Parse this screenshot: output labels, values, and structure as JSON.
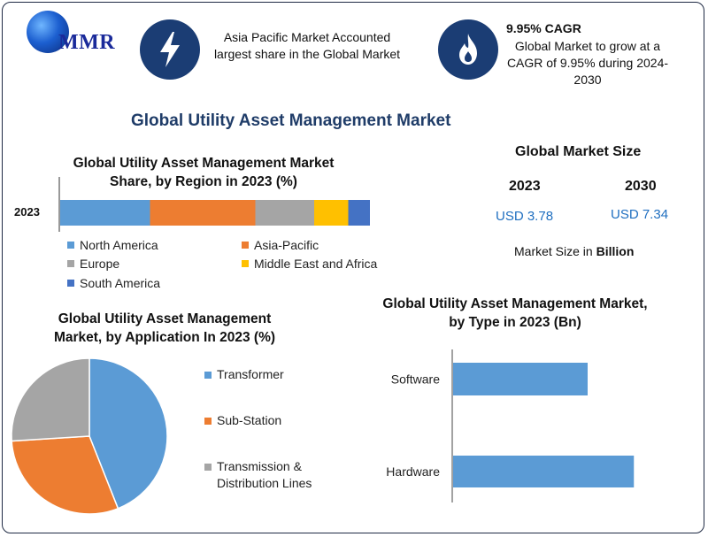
{
  "logo": {
    "text": "MMR"
  },
  "headline": {
    "region": "Asia Pacific Market Accounted largest share in the Global Market",
    "cagr_title": "9.95% CAGR",
    "cagr_body": "Global Market to grow at a CAGR of 9.95% during 2024-2030"
  },
  "main_title": "Global Utility Asset Management Market",
  "market_size": {
    "title": "Global Market Size",
    "year_1": "2023",
    "year_2": "2030",
    "value_1": "USD 3.78",
    "value_2": "USD 7.34",
    "unit_prefix": "Market Size in",
    "unit_bold": "Billion"
  },
  "colors": {
    "north_america": "#5b9bd5",
    "asia_pacific": "#ed7d31",
    "europe": "#a5a5a5",
    "mea": "#ffc000",
    "south_america": "#4472c4",
    "frame": "#1f2a44",
    "icon_bg": "#1b3d74"
  },
  "icons": [
    "globe-logo-icon",
    "lightning-icon",
    "flame-icon"
  ],
  "chart_data": [
    {
      "type": "bar",
      "orientation": "horizontal-stacked",
      "title": "Global Utility Asset Management Market Share, by Region in 2023 (%)",
      "categories": [
        "2023"
      ],
      "series": [
        {
          "name": "North America",
          "values": [
            29
          ]
        },
        {
          "name": "Asia-Pacific",
          "values": [
            34
          ]
        },
        {
          "name": "Europe",
          "values": [
            19
          ]
        },
        {
          "name": "Middle East and Africa",
          "values": [
            11
          ]
        },
        {
          "name": "South America",
          "values": [
            7
          ]
        }
      ],
      "ylim": [
        0,
        100
      ],
      "legend": "bottom",
      "grid": false
    },
    {
      "type": "pie",
      "title": "Global Utility Asset Management Market, by Application In 2023 (%)",
      "labels": [
        "Transformer",
        "Sub-Station",
        "Transmission & Distribution Lines"
      ],
      "values": [
        44,
        30,
        26
      ],
      "colors": [
        "#5b9bd5",
        "#ed7d31",
        "#a5a5a5"
      ],
      "legend": "right"
    },
    {
      "type": "bar",
      "orientation": "horizontal",
      "title": "Global Utility Asset Management Market, by Type in 2023 (Bn)",
      "categories": [
        "Software",
        "Hardware"
      ],
      "values": [
        1.6,
        2.15
      ],
      "xlim": [
        0,
        4
      ],
      "grid": false
    }
  ]
}
